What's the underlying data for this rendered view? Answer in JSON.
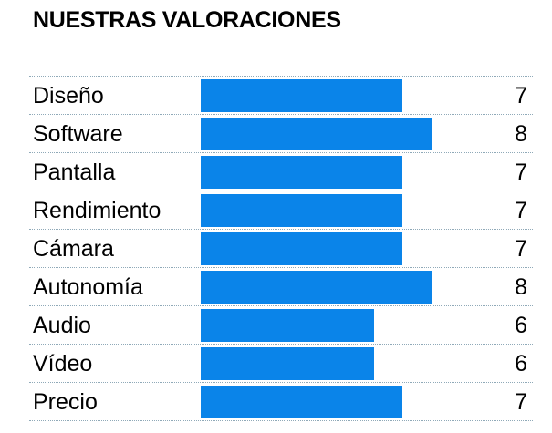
{
  "title": "NUESTRAS VALORACIONES",
  "chart_data": {
    "type": "bar",
    "orientation": "horizontal",
    "categories": [
      "Diseño",
      "Software",
      "Pantalla",
      "Rendimiento",
      "Cámara",
      "Autonomía",
      "Audio",
      "Vídeo",
      "Precio"
    ],
    "values": [
      7,
      8,
      7,
      7,
      7,
      8,
      6,
      6,
      7
    ],
    "xlim": [
      0,
      10
    ],
    "bar_color": "#0a84e9",
    "grid": false,
    "legend": "none"
  }
}
